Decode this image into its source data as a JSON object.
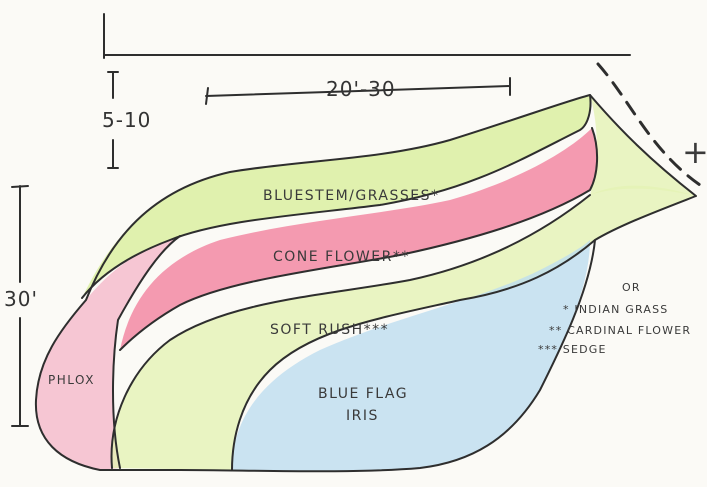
{
  "colors": {
    "paper": "#fbfaf6",
    "green": "#d8ee9a",
    "green_light": "#e4f2b4",
    "pink": "#f27f9c",
    "pink_light": "#f5b7c9",
    "blue": "#bcdcf0",
    "ink": "#2e2e2e"
  },
  "dimensions": {
    "width_label": "20'-30",
    "depth_label": "5-10",
    "height_label": "30'",
    "plus_label": "+"
  },
  "beds": [
    {
      "id": "bluestem",
      "label": "BLUESTEM/GRASSES*",
      "fill": "green"
    },
    {
      "id": "coneflower",
      "label": "CONE FLOWER**",
      "fill": "pink"
    },
    {
      "id": "softrush",
      "label": "SOFT RUSH***",
      "fill": "green_light"
    },
    {
      "id": "blueflag",
      "label_line1": "BLUE FLAG",
      "label_line2": "IRIS",
      "fill": "blue"
    },
    {
      "id": "phlox",
      "label": "PHLOX",
      "fill": "pink_light"
    }
  ],
  "legend": {
    "header": "OR",
    "items": [
      "* INDIAN GRASS",
      "** CARDINAL FLOWER",
      "*** SEDGE"
    ]
  }
}
